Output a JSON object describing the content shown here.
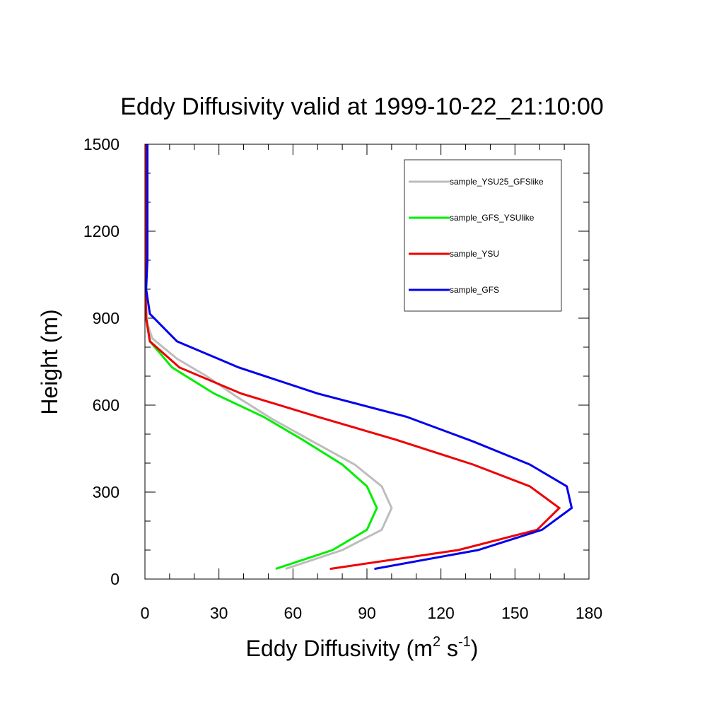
{
  "chart_data": {
    "type": "line",
    "title": "Eddy Diffusivity valid at 1999-10-22_21:10:00",
    "xlabel": {
      "base": "Eddy Diffusivity (m",
      "sup1": "2",
      "mid": " s",
      "sup2": "-1",
      "end": ")"
    },
    "ylabel": "Height (m)",
    "xlim": [
      0,
      180
    ],
    "ylim": [
      0,
      1500
    ],
    "x_ticks": [
      "0",
      "30",
      "60",
      "90",
      "120",
      "150",
      "180"
    ],
    "y_ticks": [
      "0",
      "300",
      "600",
      "900",
      "1200",
      "1500"
    ],
    "grid": false,
    "legend_position": "top-right",
    "series": [
      {
        "name": "sample_YSU25_GFSlike",
        "color": "#bdbdbd",
        "points": [
          [
            57,
            35
          ],
          [
            80,
            100
          ],
          [
            96,
            170
          ],
          [
            100,
            245
          ],
          [
            96,
            320
          ],
          [
            85,
            395
          ],
          [
            69,
            470
          ],
          [
            52,
            550
          ],
          [
            37,
            630
          ],
          [
            25,
            700
          ],
          [
            13,
            760
          ],
          [
            3,
            830
          ],
          [
            1,
            880
          ],
          [
            0.5,
            950
          ],
          [
            0.3,
            1050
          ],
          [
            0.3,
            1200
          ],
          [
            0.3,
            1500
          ]
        ]
      },
      {
        "name": "sample_GFS_YSUlike",
        "color": "#00ee00",
        "points": [
          [
            53,
            35
          ],
          [
            76,
            100
          ],
          [
            90,
            170
          ],
          [
            94,
            245
          ],
          [
            90,
            320
          ],
          [
            80,
            395
          ],
          [
            64,
            480
          ],
          [
            48,
            560
          ],
          [
            28,
            640
          ],
          [
            11,
            730
          ],
          [
            2,
            820
          ],
          [
            0.5,
            900
          ],
          [
            0.3,
            1000
          ],
          [
            0.3,
            1200
          ],
          [
            0.3,
            1500
          ]
        ]
      },
      {
        "name": "sample_YSU",
        "color": "#ee0000",
        "points": [
          [
            75,
            35
          ],
          [
            127,
            100
          ],
          [
            159,
            170
          ],
          [
            168,
            245
          ],
          [
            156,
            320
          ],
          [
            133,
            395
          ],
          [
            102,
            480
          ],
          [
            70,
            560
          ],
          [
            39,
            640
          ],
          [
            14,
            730
          ],
          [
            2,
            820
          ],
          [
            0.5,
            900
          ],
          [
            0.3,
            1000
          ],
          [
            0.3,
            1200
          ],
          [
            0.3,
            1500
          ]
        ]
      },
      {
        "name": "sample_GFS",
        "color": "#0000ee",
        "points": [
          [
            93,
            35
          ],
          [
            135,
            100
          ],
          [
            161,
            170
          ],
          [
            173,
            245
          ],
          [
            171,
            320
          ],
          [
            156,
            395
          ],
          [
            133,
            475
          ],
          [
            106,
            560
          ],
          [
            70,
            640
          ],
          [
            38,
            730
          ],
          [
            13,
            820
          ],
          [
            2,
            915
          ],
          [
            0.5,
            1000
          ],
          [
            1,
            1100
          ],
          [
            1,
            1200
          ],
          [
            1,
            1500
          ]
        ]
      }
    ]
  }
}
